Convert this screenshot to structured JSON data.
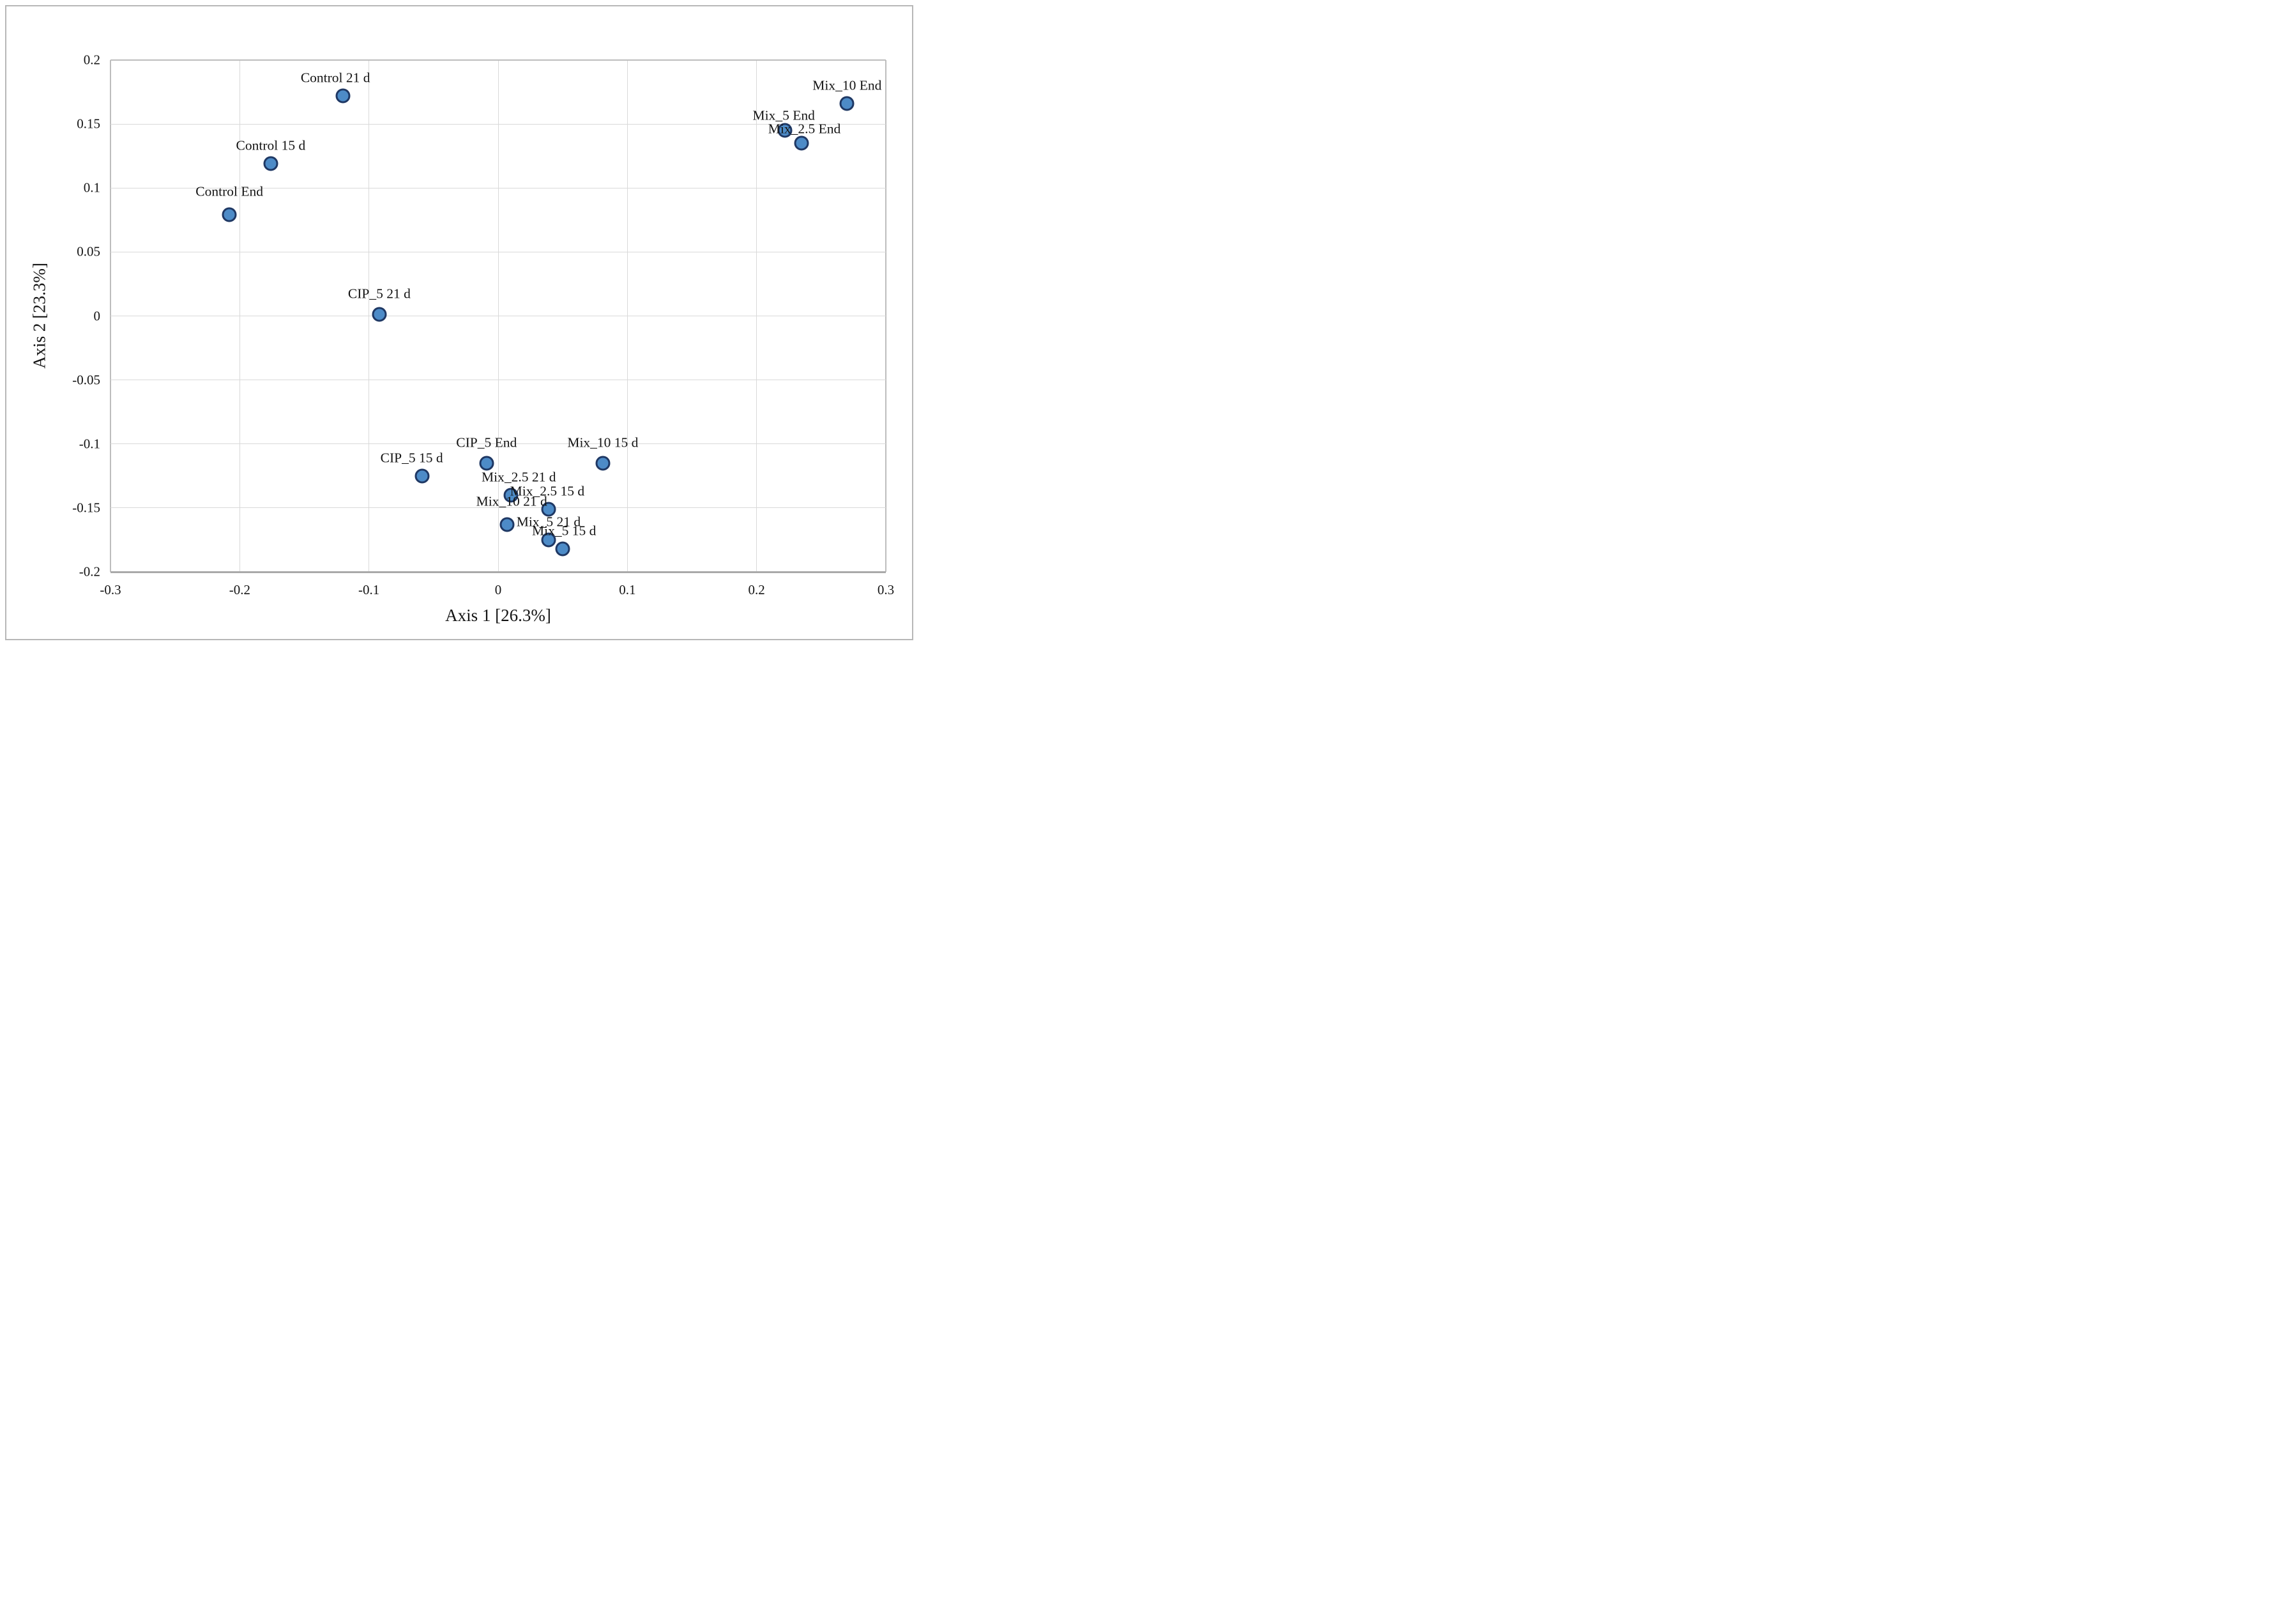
{
  "figure": {
    "x_axis_title": "Axis 1 [26.3%]",
    "y_axis_title": "Axis 2 [23.3%]"
  },
  "chart_data": {
    "type": "scatter",
    "title": "",
    "xlabel": "Axis 1 [26.3%]",
    "ylabel": "Axis 2 [23.3%]",
    "xlim": [
      -0.3,
      0.3
    ],
    "ylim": [
      -0.2,
      0.2
    ],
    "x_ticks": [
      -0.3,
      -0.2,
      -0.1,
      0,
      0.1,
      0.2,
      0.3
    ],
    "x_tick_labels": [
      "-0.3",
      "-0.2",
      "-0.1",
      "0",
      "0.1",
      "0.2",
      "0.3"
    ],
    "y_ticks": [
      0.2,
      0.15,
      0.1,
      0.05,
      0,
      -0.05,
      -0.1,
      -0.15,
      -0.2
    ],
    "y_tick_labels": [
      "0.2",
      "0.15",
      "0.1",
      "0.05",
      "0",
      "-0.05",
      "-0.1",
      "-0.15",
      "-0.2"
    ],
    "grid": true,
    "legend": false,
    "colors": {
      "marker_fill": "#4d8bc7",
      "marker_stroke": "#1f3864",
      "gridline": "#d9d9d9",
      "plot_frame": "#bdbdbd",
      "axis_line": "#a9a9a9",
      "figure_border": "#b7b7b7",
      "text": "#141414"
    },
    "series": [
      {
        "name": "samples",
        "points": [
          {
            "label": "Control 21 d",
            "x": -0.12,
            "y": 0.172,
            "label_dx": -12,
            "label_dy": 0
          },
          {
            "label": "Control 15 d",
            "x": -0.176,
            "y": 0.119,
            "label_dx": 0,
            "label_dy": 0
          },
          {
            "label": "Control End",
            "x": -0.208,
            "y": 0.079,
            "label_dx": 0,
            "label_dy": -8
          },
          {
            "label": "CIP_5 21 d",
            "x": -0.092,
            "y": 0.001,
            "label_dx": 0,
            "label_dy": -4
          },
          {
            "label": "CIP_5 End",
            "x": -0.009,
            "y": -0.115,
            "label_dx": 0,
            "label_dy": -4
          },
          {
            "label": "CIP_5 15 d",
            "x": -0.059,
            "y": -0.125,
            "label_dx": -16,
            "label_dy": 0
          },
          {
            "label": "Mix_10 15 d",
            "x": 0.081,
            "y": -0.115,
            "label_dx": 0,
            "label_dy": -4
          },
          {
            "label": "Mix_2.5 21 d",
            "x": 0.01,
            "y": -0.14,
            "label_dx": 12,
            "label_dy": 0
          },
          {
            "label": "Mix_2.5 15 d",
            "x": 0.039,
            "y": -0.151,
            "label_dx": -2,
            "label_dy": 0
          },
          {
            "label": "Mix_10 21 d",
            "x": 0.007,
            "y": -0.163,
            "label_dx": 7,
            "label_dy": -8
          },
          {
            "label": "Mix_5 21 d",
            "x": 0.039,
            "y": -0.175,
            "label_dx": 0,
            "label_dy": 0
          },
          {
            "label": "Mix_5 15 d",
            "x": 0.05,
            "y": -0.182,
            "label_dx": 2,
            "label_dy": 0
          },
          {
            "label": "Mix_10 End",
            "x": 0.27,
            "y": 0.166,
            "label_dx": 0,
            "label_dy": 0
          },
          {
            "label": "Mix_5 End",
            "x": 0.222,
            "y": 0.145,
            "label_dx": -2,
            "label_dy": 5
          },
          {
            "label": "Mix_2.5 End",
            "x": 0.235,
            "y": 0.135,
            "label_dx": 4,
            "label_dy": 6
          }
        ]
      }
    ]
  }
}
